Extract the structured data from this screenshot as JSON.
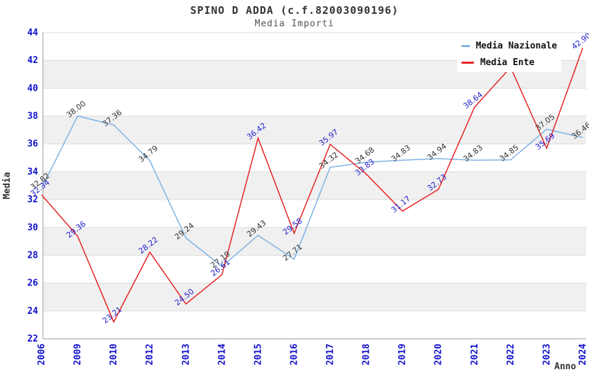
{
  "title": "SPINO D ADDA (c.f.82003090196)",
  "subtitle": "Media Importi",
  "legend": {
    "position": "top-right",
    "items": [
      {
        "label": "Media Nazionale",
        "color": "#7eb2e4"
      },
      {
        "label": "Media Ente",
        "color": "#e62222"
      }
    ]
  },
  "chart_data": {
    "type": "line",
    "x": [
      "2006",
      "2009",
      "2010",
      "2012",
      "2013",
      "2014",
      "2015",
      "2016",
      "2017",
      "2018",
      "2019",
      "2020",
      "2021",
      "2022",
      "2023",
      "2024"
    ],
    "series": [
      {
        "name": "Media Nazionale",
        "color": "#7eb2e4",
        "label_color": "#333333",
        "values": [
          32.82,
          38.0,
          37.36,
          34.79,
          29.24,
          27.19,
          29.43,
          27.71,
          34.32,
          34.68,
          34.83,
          34.94,
          34.83,
          34.85,
          37.05,
          36.46
        ],
        "labels": [
          "32.82",
          "38.00",
          "37.36",
          "34.79",
          "29.24",
          "27.19",
          "29.43",
          "27.71",
          "34.32",
          "34.68",
          "34.83",
          "34.94",
          "34.83",
          "34.85",
          "37.05",
          "36.46"
        ]
      },
      {
        "name": "Media Ente",
        "color": "#e62222",
        "label_color": "#2222cc",
        "values": [
          32.34,
          29.36,
          23.21,
          28.22,
          24.5,
          26.61,
          36.42,
          29.58,
          35.97,
          33.83,
          31.17,
          32.73,
          38.64,
          41.5,
          35.69,
          42.9
        ],
        "labels": [
          "32.34",
          "29.36",
          "23.21",
          "28.22",
          "24.50",
          "26.61",
          "36.42",
          "29.58",
          "35.97",
          "33.83",
          "31.17",
          "32.73",
          "38.64",
          "",
          "35.69",
          "42.90"
        ]
      }
    ],
    "xlabel": "Anno",
    "ylabel": "Media",
    "ylim": [
      22,
      44
    ],
    "ytick_step": 2,
    "grid": "horizontal-bands",
    "band_color": "#f0f0f0",
    "grid_color": "#dcdcdc",
    "axis_color": "#999999",
    "tick_label_color": "#1111cc",
    "axis_title_color": "#333333"
  }
}
